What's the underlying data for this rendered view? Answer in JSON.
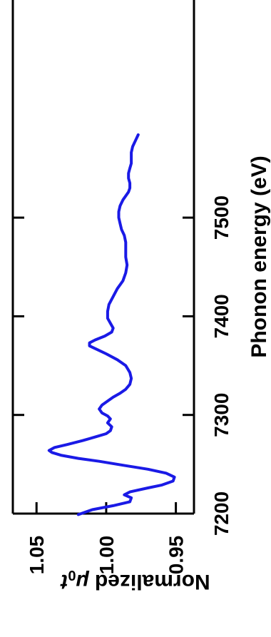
{
  "chart_data": {
    "type": "line",
    "orientation": "rotated-90",
    "xlabel": "Phonon energy (eV)",
    "ylabel_text": "Normalized ",
    "ylabel_symbol": "μ",
    "ylabel_subscript": "0",
    "ylabel_suffix": "t",
    "xlim": [
      7200,
      7585
    ],
    "ylim": [
      0.937,
      1.067
    ],
    "x_ticks": [
      {
        "value": 7200,
        "label": "7200"
      },
      {
        "value": 7300,
        "label": "7300"
      },
      {
        "value": 7400,
        "label": "7400"
      },
      {
        "value": 7500,
        "label": "7500"
      }
    ],
    "y_ticks": [
      {
        "value": 1.05,
        "label": "1.05"
      },
      {
        "value": 1.0,
        "label": "1.00"
      },
      {
        "value": 0.95,
        "label": "0.95"
      }
    ],
    "grid": false,
    "series": [
      {
        "color": "#1a1ae6",
        "points": [
          [
            7199,
            1.02
          ],
          [
            7204,
            1.01
          ],
          [
            7208,
            0.995
          ],
          [
            7212,
            0.983
          ],
          [
            7216,
            0.982
          ],
          [
            7219,
            0.987
          ],
          [
            7222,
            0.983
          ],
          [
            7226,
            0.97
          ],
          [
            7229,
            0.96
          ],
          [
            7233,
            0.952
          ],
          [
            7237,
            0.951
          ],
          [
            7241,
            0.957
          ],
          [
            7245,
            0.97
          ],
          [
            7249,
            0.988
          ],
          [
            7253,
            1.005
          ],
          [
            7256,
            1.02
          ],
          [
            7259,
            1.032
          ],
          [
            7262,
            1.039
          ],
          [
            7264,
            1.041
          ],
          [
            7267,
            1.037
          ],
          [
            7270,
            1.028
          ],
          [
            7274,
            1.017
          ],
          [
            7278,
            1.007
          ],
          [
            7281,
            1.0
          ],
          [
            7284,
            0.997
          ],
          [
            7288,
            0.996
          ],
          [
            7292,
            0.999
          ],
          [
            7296,
            0.997
          ],
          [
            7299,
            0.999
          ],
          [
            7302,
            1.003
          ],
          [
            7306,
            1.005
          ],
          [
            7310,
            1.003
          ],
          [
            7314,
            0.999
          ],
          [
            7318,
            0.995
          ],
          [
            7322,
            0.99
          ],
          [
            7326,
            0.986
          ],
          [
            7331,
            0.983
          ],
          [
            7337,
            0.982
          ],
          [
            7343,
            0.983
          ],
          [
            7350,
            0.986
          ],
          [
            7356,
            0.992
          ],
          [
            7362,
            1.0
          ],
          [
            7366,
            1.006
          ],
          [
            7370,
            1.012
          ],
          [
            7373,
            1.012
          ],
          [
            7376,
            1.008
          ],
          [
            7380,
            1.001
          ],
          [
            7384,
            0.996
          ],
          [
            7388,
            0.995
          ],
          [
            7393,
            0.997
          ],
          [
            7398,
            0.999
          ],
          [
            7405,
            0.999
          ],
          [
            7412,
            0.998
          ],
          [
            7420,
            0.995
          ],
          [
            7428,
            0.992
          ],
          [
            7436,
            0.988
          ],
          [
            7444,
            0.986
          ],
          [
            7452,
            0.985
          ],
          [
            7460,
            0.986
          ],
          [
            7468,
            0.986
          ],
          [
            7475,
            0.986
          ],
          [
            7482,
            0.987
          ],
          [
            7488,
            0.989
          ],
          [
            7494,
            0.99
          ],
          [
            7500,
            0.991
          ],
          [
            7506,
            0.991
          ],
          [
            7512,
            0.99
          ],
          [
            7518,
            0.988
          ],
          [
            7522,
            0.986
          ],
          [
            7526,
            0.984
          ],
          [
            7530,
            0.983
          ],
          [
            7535,
            0.983
          ],
          [
            7540,
            0.984
          ],
          [
            7545,
            0.984
          ],
          [
            7550,
            0.983
          ],
          [
            7555,
            0.982
          ],
          [
            7560,
            0.982
          ],
          [
            7566,
            0.982
          ],
          [
            7572,
            0.981
          ],
          [
            7578,
            0.979
          ],
          [
            7584,
            0.977
          ]
        ]
      }
    ]
  }
}
